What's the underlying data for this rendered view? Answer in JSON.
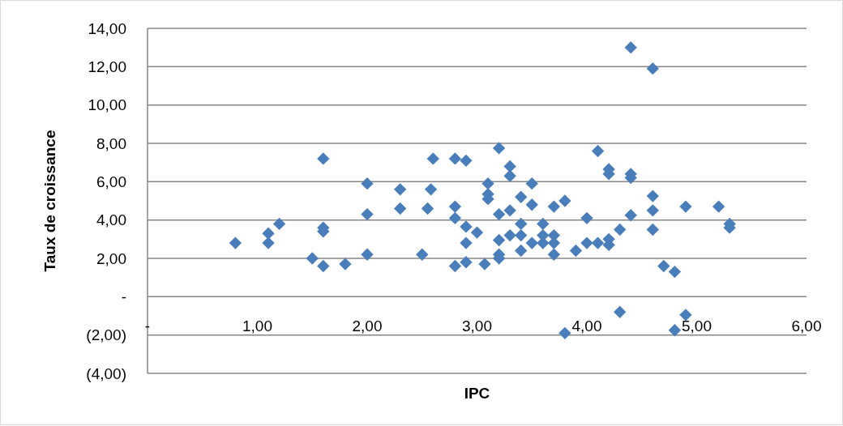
{
  "chart_data": {
    "type": "scatter",
    "xlabel": "IPC",
    "ylabel": "Taux de croissance",
    "marker": "diamond",
    "grid": "y",
    "xlim": [
      0,
      6
    ],
    "ylim": [
      -4,
      14
    ],
    "xticks": [
      {
        "value": 0,
        "label": "-"
      },
      {
        "value": 1,
        "label": "1,00"
      },
      {
        "value": 2,
        "label": "2,00"
      },
      {
        "value": 3,
        "label": "3,00"
      },
      {
        "value": 4,
        "label": "4,00"
      },
      {
        "value": 5,
        "label": "5,00"
      },
      {
        "value": 6,
        "label": "6,00"
      }
    ],
    "yticks": [
      {
        "value": -4,
        "label": "(4,00)"
      },
      {
        "value": -2,
        "label": "(2,00)"
      },
      {
        "value": 0,
        "label": "-"
      },
      {
        "value": 2,
        "label": "2,00"
      },
      {
        "value": 4,
        "label": "4,00"
      },
      {
        "value": 6,
        "label": "6,00"
      },
      {
        "value": 8,
        "label": "8,00"
      },
      {
        "value": 10,
        "label": "10,00"
      },
      {
        "value": 12,
        "label": "12,00"
      },
      {
        "value": 14,
        "label": "14,00"
      }
    ],
    "series": [
      {
        "color": "#4a7ebb",
        "x": [
          0.8,
          1.1,
          1.1,
          1.2,
          1.5,
          1.6,
          1.6,
          1.6,
          1.6,
          1.8,
          2.0,
          2.0,
          2.0,
          2.3,
          2.3,
          2.5,
          2.55,
          2.58,
          2.6,
          2.8,
          2.9,
          2.8,
          2.8,
          2.9,
          3.0,
          2.9,
          2.8,
          2.9,
          3.07,
          3.1,
          3.1,
          3.1,
          3.2,
          3.2,
          3.2,
          3.2,
          3.2,
          3.3,
          3.3,
          3.3,
          3.3,
          3.4,
          3.4,
          3.4,
          3.4,
          3.5,
          3.5,
          3.5,
          3.6,
          3.6,
          3.6,
          3.7,
          3.7,
          3.7,
          3.7,
          3.8,
          3.9,
          4.0,
          4.0,
          4.1,
          4.1,
          4.2,
          4.2,
          4.2,
          4.2,
          4.3,
          4.4,
          4.4,
          4.4,
          4.4,
          4.6,
          4.6,
          4.6,
          4.6,
          4.7,
          4.8,
          4.9,
          5.2,
          5.3,
          5.3,
          3.8,
          4.3,
          4.8,
          4.9
        ],
        "values": [
          2.8,
          3.3,
          2.8,
          3.8,
          2.0,
          3.6,
          3.4,
          7.2,
          1.6,
          1.7,
          5.9,
          4.3,
          2.2,
          5.6,
          4.6,
          2.2,
          4.6,
          5.6,
          7.2,
          7.2,
          7.1,
          4.7,
          4.1,
          3.65,
          3.35,
          2.8,
          1.6,
          1.8,
          1.7,
          5.9,
          5.35,
          5.1,
          7.75,
          4.3,
          2.95,
          2.0,
          2.2,
          6.8,
          6.3,
          4.5,
          3.2,
          5.2,
          3.8,
          3.2,
          2.4,
          5.9,
          4.8,
          2.8,
          3.8,
          3.2,
          2.8,
          4.7,
          3.2,
          2.8,
          2.2,
          5.0,
          2.4,
          4.1,
          2.8,
          7.6,
          2.8,
          6.65,
          6.4,
          3.0,
          2.7,
          3.5,
          6.4,
          6.2,
          4.25,
          13.0,
          11.9,
          5.25,
          4.5,
          3.5,
          1.6,
          1.3,
          4.7,
          4.7,
          3.8,
          3.6,
          -1.9,
          -0.8,
          -1.75,
          -0.95
        ]
      }
    ]
  }
}
